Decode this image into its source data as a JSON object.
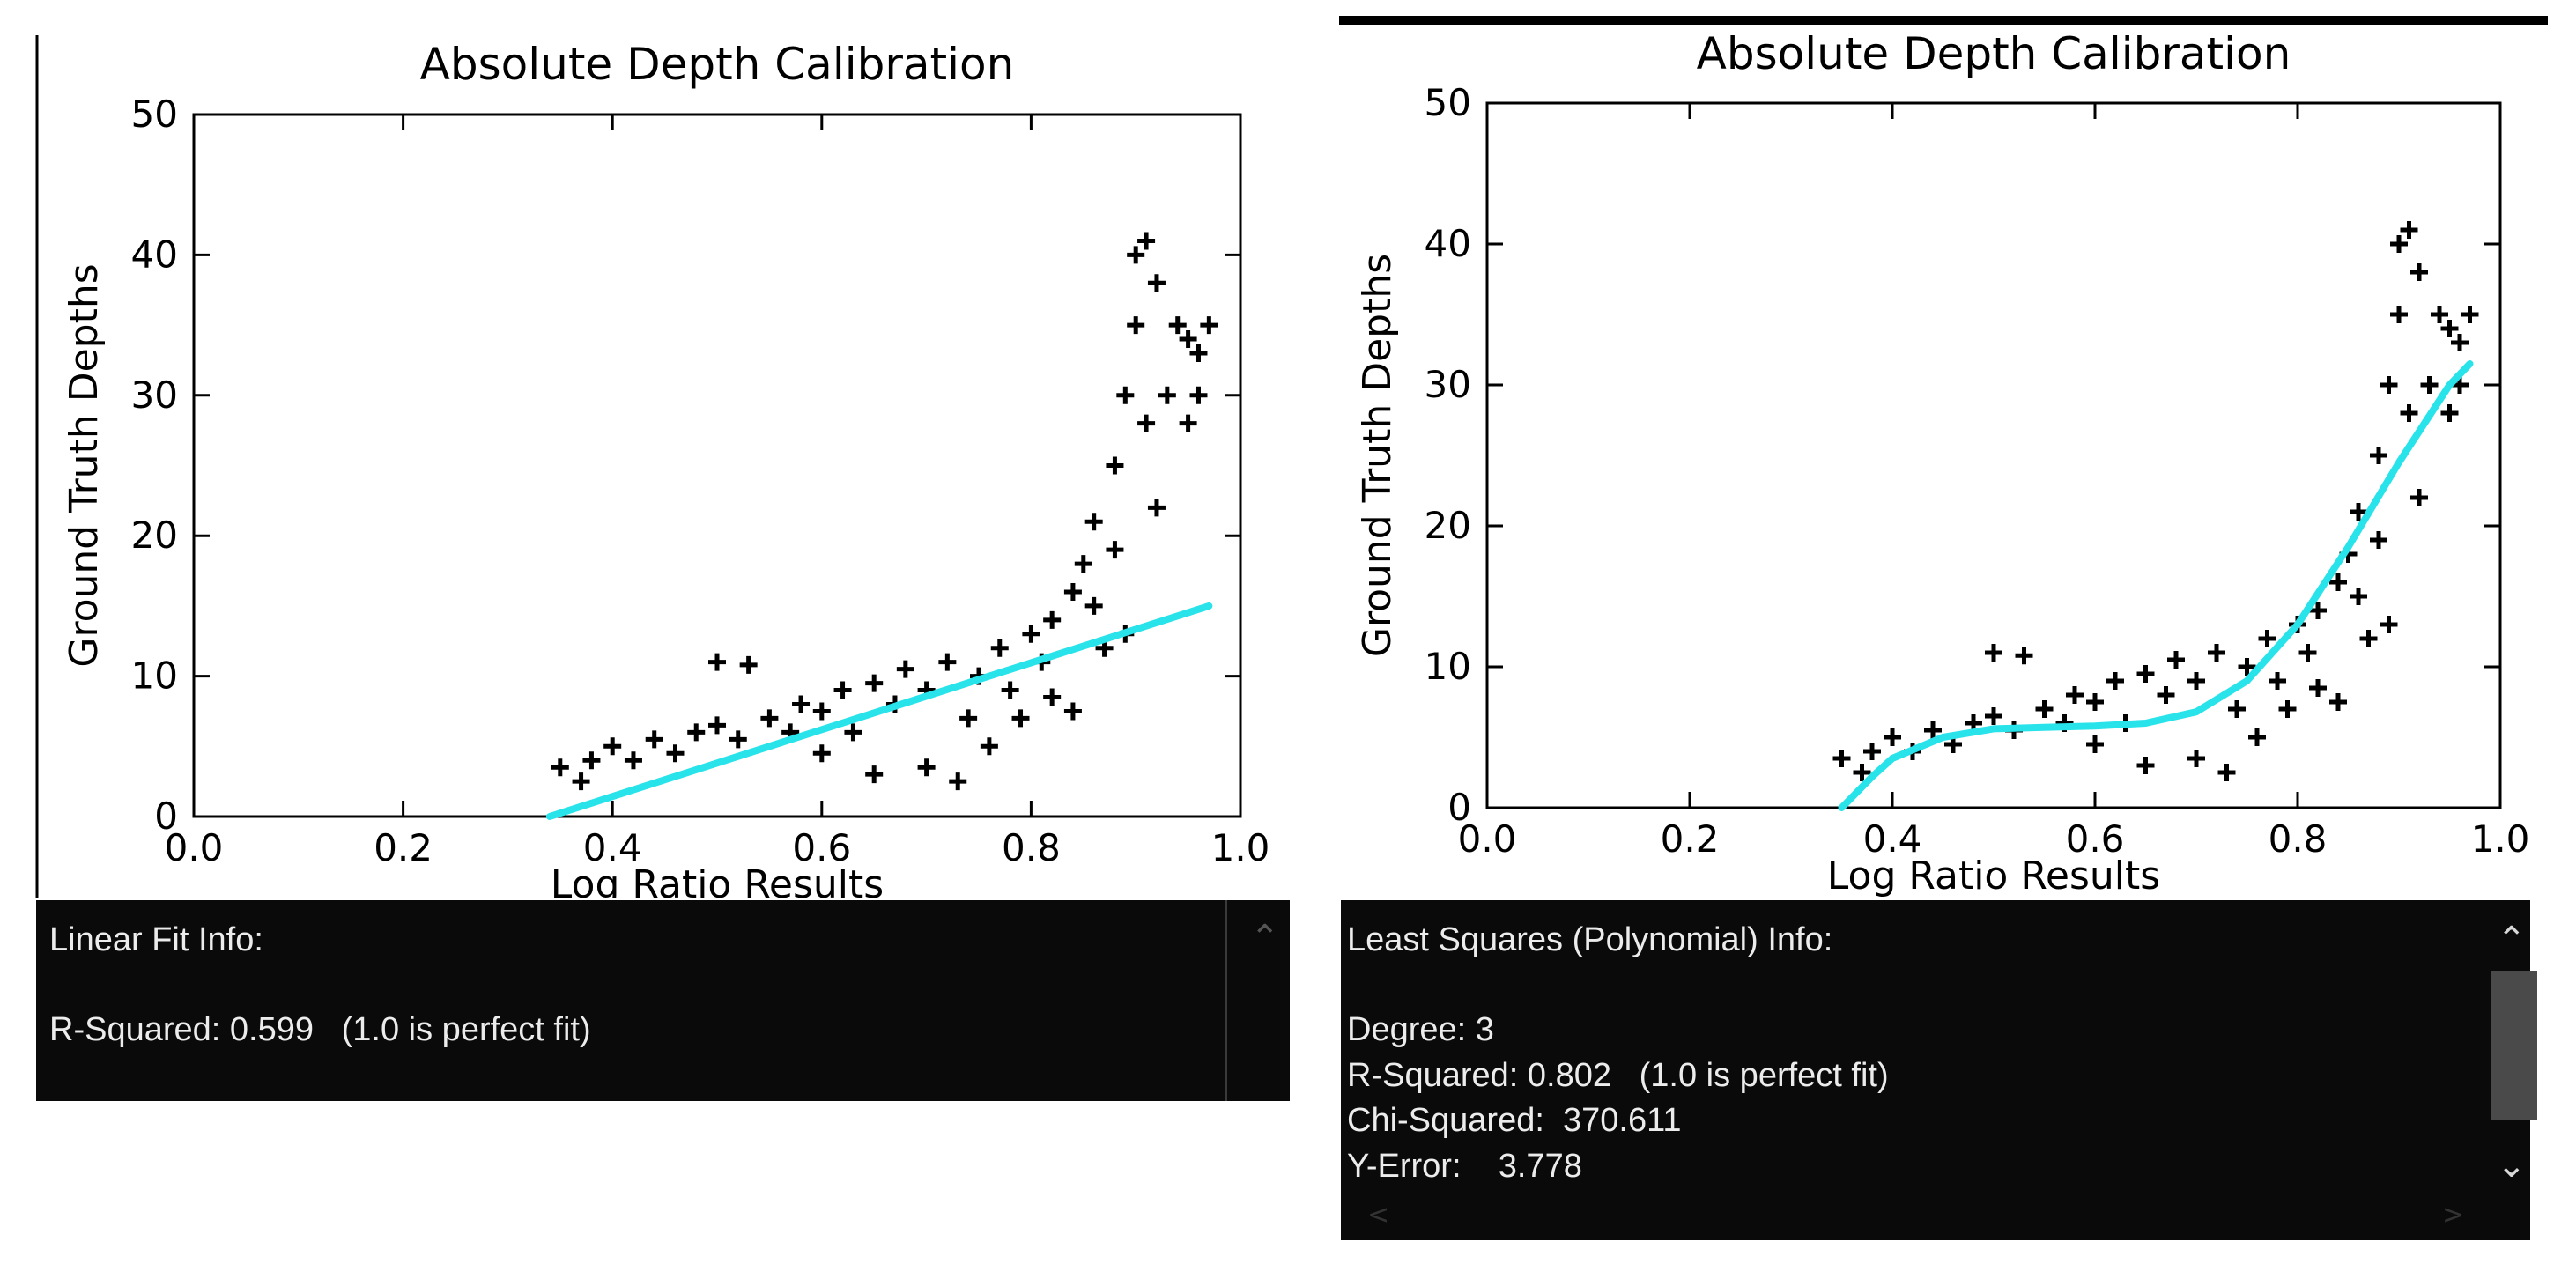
{
  "chart_data": [
    {
      "type": "scatter",
      "title": "Absolute Depth Calibration",
      "x_label": "Log Ratio Results",
      "y_label": "Ground Truth Depths",
      "xlim": [
        0,
        1
      ],
      "ylim": [
        0,
        50
      ],
      "xticks": [
        {
          "value": 0,
          "label": "0.0"
        },
        0.2,
        0.4,
        0.6,
        0.8,
        {
          "value": 1,
          "label": "1.0"
        }
      ],
      "yticks": [
        0,
        10,
        20,
        30,
        40,
        50
      ],
      "color": "#000000",
      "x": [
        0.35,
        0.37,
        0.38,
        0.4,
        0.42,
        0.44,
        0.46,
        0.48,
        0.5,
        0.5,
        0.53,
        0.52,
        0.55,
        0.57,
        0.58,
        0.6,
        0.6,
        0.62,
        0.63,
        0.65,
        0.65,
        0.67,
        0.68,
        0.7,
        0.7,
        0.72,
        0.73,
        0.74,
        0.75,
        0.76,
        0.77,
        0.78,
        0.79,
        0.8,
        0.81,
        0.82,
        0.82,
        0.84,
        0.84,
        0.85,
        0.86,
        0.86,
        0.87,
        0.88,
        0.88,
        0.89,
        0.89,
        0.9,
        0.9,
        0.91,
        0.91,
        0.92,
        0.92,
        0.93,
        0.94,
        0.95,
        0.95,
        0.96,
        0.96,
        0.97
      ],
      "values": [
        3.5,
        2.5,
        4,
        5,
        4,
        5.5,
        4.5,
        6,
        6.5,
        11,
        10.8,
        5.5,
        7,
        6,
        8,
        7.5,
        4.5,
        9,
        6,
        9.5,
        3,
        8,
        10.5,
        9,
        3.5,
        11,
        2.5,
        7,
        10,
        5,
        12,
        9,
        7,
        13,
        11,
        8.5,
        14,
        16,
        7.5,
        18,
        15,
        21,
        12,
        25,
        19,
        30,
        13,
        40,
        35,
        41,
        28,
        38,
        22,
        30,
        35,
        34,
        28,
        33,
        30,
        35
      ],
      "fit_color": "#29e3ea",
      "fit_x": [
        0.34,
        0.97
      ],
      "fit_values": [
        0,
        15
      ]
    },
    {
      "type": "scatter",
      "title": "Absolute Depth Calibration",
      "x_label": "Log Ratio Results",
      "y_label": "Ground Truth Depths",
      "xlim": [
        0,
        1
      ],
      "ylim": [
        0,
        50
      ],
      "xticks": [
        {
          "value": 0,
          "label": "0.0"
        },
        0.2,
        0.4,
        0.6,
        0.8,
        {
          "value": 1,
          "label": "1.0"
        }
      ],
      "yticks": [
        0,
        10,
        20,
        30,
        40,
        50
      ],
      "color": "#000000",
      "x": [
        0.35,
        0.37,
        0.38,
        0.4,
        0.42,
        0.44,
        0.46,
        0.48,
        0.5,
        0.5,
        0.53,
        0.52,
        0.55,
        0.57,
        0.58,
        0.6,
        0.6,
        0.62,
        0.63,
        0.65,
        0.65,
        0.67,
        0.68,
        0.7,
        0.7,
        0.72,
        0.73,
        0.74,
        0.75,
        0.76,
        0.77,
        0.78,
        0.79,
        0.8,
        0.81,
        0.82,
        0.82,
        0.84,
        0.84,
        0.85,
        0.86,
        0.86,
        0.87,
        0.88,
        0.88,
        0.89,
        0.89,
        0.9,
        0.9,
        0.91,
        0.91,
        0.92,
        0.92,
        0.93,
        0.94,
        0.95,
        0.95,
        0.96,
        0.96,
        0.97
      ],
      "values": [
        3.5,
        2.5,
        4,
        5,
        4,
        5.5,
        4.5,
        6,
        6.5,
        11,
        10.8,
        5.5,
        7,
        6,
        8,
        7.5,
        4.5,
        9,
        6,
        9.5,
        3,
        8,
        10.5,
        9,
        3.5,
        11,
        2.5,
        7,
        10,
        5,
        12,
        9,
        7,
        13,
        11,
        8.5,
        14,
        16,
        7.5,
        18,
        15,
        21,
        12,
        25,
        19,
        30,
        13,
        40,
        35,
        41,
        28,
        38,
        22,
        30,
        35,
        34,
        28,
        33,
        30,
        35
      ],
      "fit_color": "#29e3ea",
      "fit_x": [
        0.35,
        0.38,
        0.4,
        0.45,
        0.5,
        0.55,
        0.6,
        0.65,
        0.7,
        0.75,
        0.8,
        0.85,
        0.9,
        0.95,
        0.97
      ],
      "fit_values": [
        0,
        2.2,
        3.5,
        5,
        5.6,
        5.7,
        5.8,
        6,
        6.8,
        9,
        13,
        18.5,
        24.5,
        30,
        31.5
      ]
    }
  ],
  "panels": [
    {
      "title": "Linear Fit Info:",
      "lines": [
        "R-Squared: 0.599   (1.0 is perfect fit)"
      ]
    },
    {
      "title": "Least Squares (Polynomial) Info:",
      "lines": [
        "Degree: 3",
        "R-Squared: 0.802   (1.0 is perfect fit)",
        "Chi-Squared:  370.611",
        "Y-Error:    3.778"
      ]
    }
  ]
}
